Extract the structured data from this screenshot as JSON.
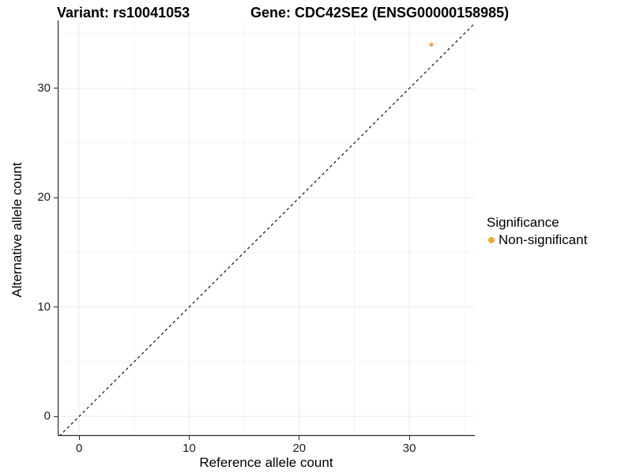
{
  "header": {
    "variant_title": "Variant: rs10041053",
    "gene_title": "Gene: CDC42SE2 (ENSG00000158985)"
  },
  "legend": {
    "title": "Significance",
    "items": [
      {
        "label": "Non-significant",
        "color": "#FAA43A"
      }
    ]
  },
  "chart_data": {
    "type": "scatter",
    "title_left": "Variant: rs10041053",
    "title_right": "Gene: CDC42SE2 (ENSG00000158985)",
    "xlabel": "Reference allele count",
    "ylabel": "Alternative allele count",
    "xlim": [
      -1.95,
      35.95
    ],
    "ylim": [
      -1.8,
      36.2
    ],
    "x_major_ticks": [
      0,
      10,
      20,
      30
    ],
    "x_minor_ticks": [
      5,
      15,
      25,
      35
    ],
    "y_major_ticks": [
      0,
      10,
      20,
      30
    ],
    "y_minor_ticks": [
      5,
      15,
      25,
      35
    ],
    "grid": true,
    "legend_position": "right",
    "legend_title": "Significance",
    "identity_line": {
      "style": "dashed",
      "slope": 1,
      "intercept": 0,
      "color": "#111111"
    },
    "series": [
      {
        "name": "Non-significant",
        "color": "#FAA43A",
        "point_radius": 2.5,
        "points": [
          [
            32,
            34
          ]
        ]
      }
    ]
  },
  "colors": {
    "accent_orange": "#FAA43A",
    "grid_major": "#E9E9E9",
    "grid_minor": "#F4F4F4",
    "axis_line": "#2a2a2a",
    "tick_text": "#1c1c1c"
  }
}
